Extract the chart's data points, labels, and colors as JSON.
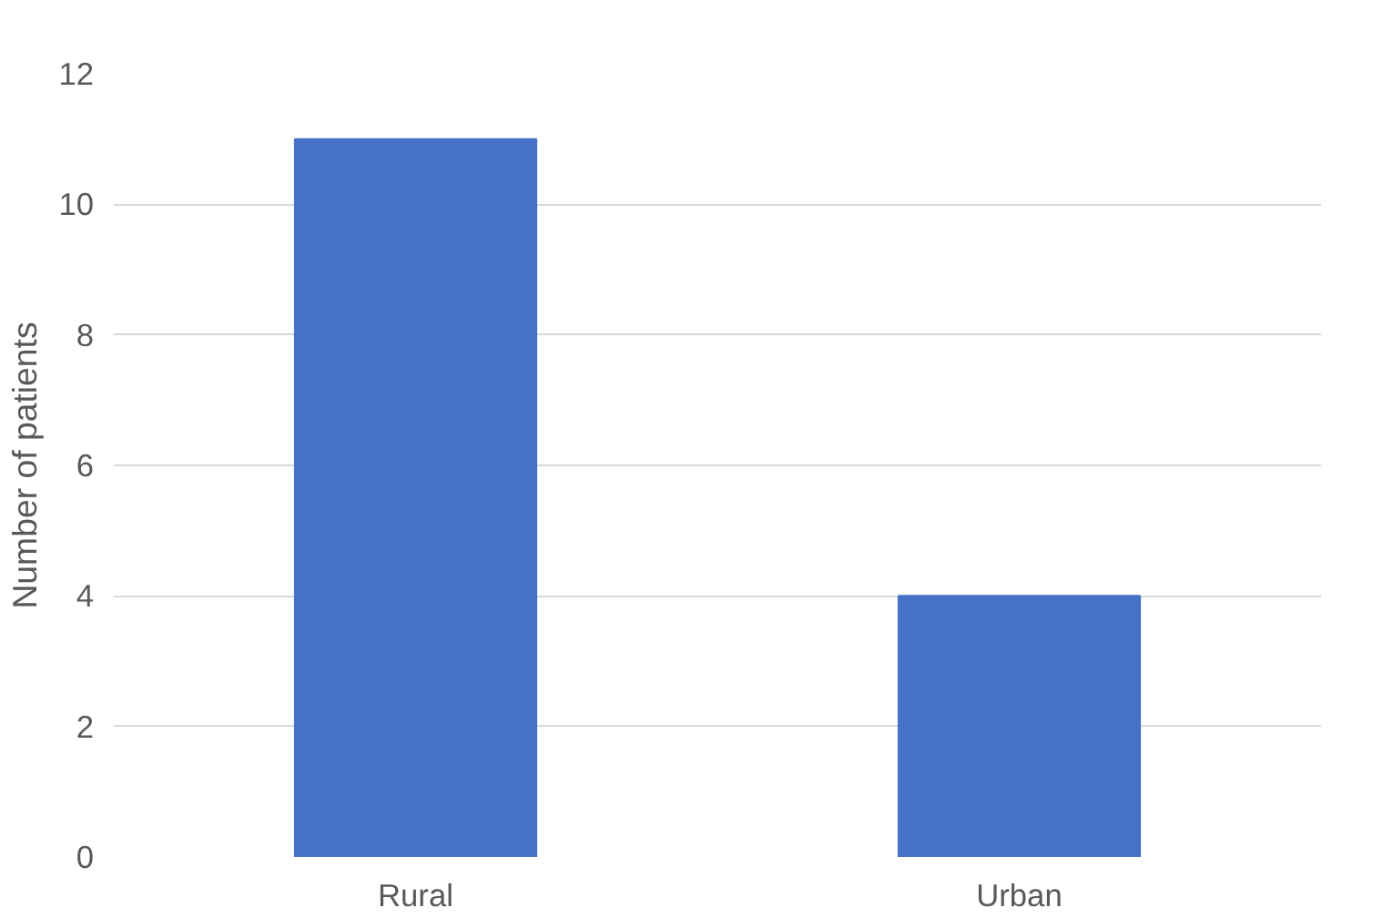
{
  "chart_data": {
    "type": "bar",
    "ylabel": "Number of patients",
    "categories": [
      "Rural",
      "Urban"
    ],
    "values": [
      11,
      4
    ],
    "color": "#4472c4",
    "ylim": [
      0,
      12
    ],
    "yticks": [
      0,
      2,
      4,
      6,
      8,
      10,
      12
    ],
    "grid": "y"
  }
}
